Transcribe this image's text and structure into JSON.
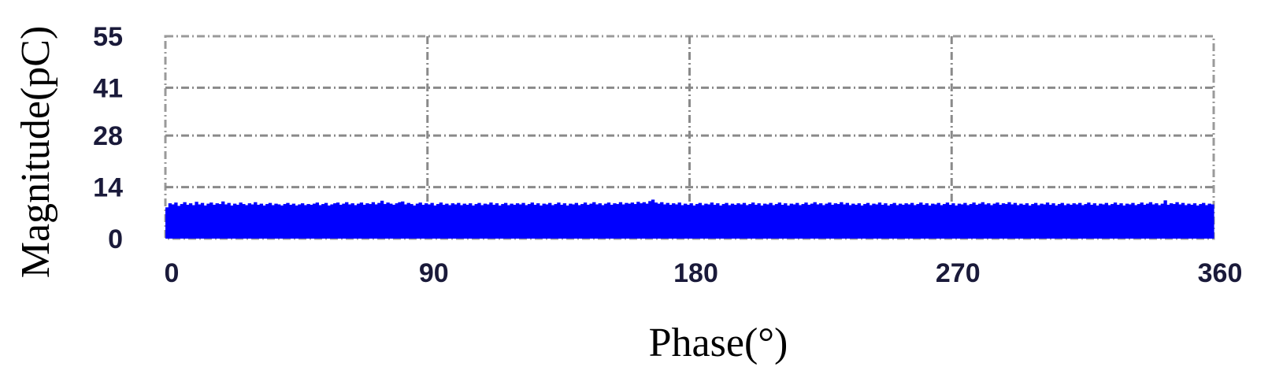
{
  "chart_data": {
    "type": "bar",
    "xlabel": "Phase(°)",
    "ylabel": "Magnitude(pC)",
    "xlim": [
      0,
      360
    ],
    "ylim": [
      0,
      55
    ],
    "xticks": [
      0,
      90,
      180,
      270,
      360
    ],
    "yticks": [
      0,
      14,
      28,
      41,
      55
    ],
    "xtick_labels": [
      "0",
      "90",
      "180",
      "270",
      "360"
    ],
    "ytick_labels": [
      "0",
      "14",
      "28",
      "41",
      "55"
    ],
    "grid": true,
    "series": [
      {
        "color": "#0000ff",
        "base_level": 7.5,
        "peak_level": 10.5,
        "description_phase_range": [
          0,
          360
        ],
        "bin_width": 1,
        "values": [
          8.5,
          9.6,
          9.3,
          9.8,
          8.9,
          9.4,
          9.9,
          9.2,
          9.6,
          9.1,
          10.0,
          9.3,
          9.7,
          9.0,
          9.5,
          9.8,
          9.2,
          9.6,
          9.4,
          10.1,
          9.3,
          9.7,
          9.0,
          9.5,
          9.2,
          9.8,
          9.4,
          9.1,
          9.6,
          9.3,
          9.9,
          9.2,
          9.5,
          9.0,
          9.4,
          9.7,
          9.1,
          9.5,
          9.3,
          9.0,
          9.4,
          9.7,
          9.2,
          9.5,
          9.0,
          9.3,
          9.6,
          9.1,
          9.4,
          9.2,
          9.5,
          9.8,
          9.1,
          9.4,
          9.7,
          9.0,
          9.3,
          9.6,
          9.8,
          9.2,
          9.5,
          9.9,
          9.3,
          9.6,
          9.1,
          9.5,
          9.8,
          9.2,
          9.6,
          9.4,
          9.9,
          9.3,
          9.7,
          10.3,
          9.4,
          9.8,
          9.5,
          9.2,
          9.6,
          9.9,
          10.1,
          9.3,
          9.7,
          9.4,
          9.0,
          9.5,
          9.8,
          9.2,
          9.6,
          9.3,
          9.7,
          9.0,
          9.4,
          9.8,
          9.2,
          9.5,
          9.1,
          9.6,
          9.3,
          9.7,
          9.1,
          9.5,
          9.2,
          9.6,
          9.0,
          9.4,
          9.7,
          9.1,
          9.5,
          9.3,
          9.8,
          9.2,
          9.6,
          9.0,
          9.4,
          9.7,
          9.1,
          9.5,
          9.2,
          9.6,
          9.3,
          9.7,
          9.1,
          9.4,
          9.8,
          9.2,
          9.6,
          9.0,
          9.5,
          9.3,
          9.7,
          9.1,
          9.4,
          9.8,
          9.2,
          9.6,
          9.0,
          9.5,
          9.3,
          9.7,
          9.1,
          9.4,
          9.8,
          9.2,
          9.5,
          9.9,
          9.3,
          9.6,
          9.1,
          9.5,
          9.8,
          9.2,
          9.6,
          9.4,
          9.9,
          9.3,
          9.7,
          9.5,
          9.8,
          9.4,
          10.0,
          9.6,
          9.9,
          9.5,
          10.2,
          10.6,
          9.8,
          9.5,
          9.9,
          9.3,
          9.7,
          9.2,
          9.6,
          9.3,
          9.8,
          9.1,
          9.5,
          9.2,
          9.6,
          9.0,
          9.4,
          9.7,
          9.1,
          9.5,
          9.3,
          9.8,
          9.2,
          9.6,
          9.0,
          9.4,
          9.7,
          9.1,
          9.5,
          9.2,
          9.6,
          9.3,
          9.7,
          9.1,
          9.4,
          9.8,
          9.2,
          9.6,
          9.0,
          9.5,
          9.3,
          9.7,
          9.1,
          9.4,
          9.8,
          9.2,
          9.6,
          9.0,
          9.5,
          9.3,
          9.7,
          9.1,
          9.4,
          9.8,
          9.2,
          9.5,
          9.9,
          9.3,
          9.6,
          9.1,
          9.5,
          9.8,
          9.2,
          9.6,
          9.4,
          9.9,
          9.3,
          9.7,
          9.1,
          9.5,
          9.2,
          9.6,
          9.0,
          9.4,
          9.7,
          9.1,
          9.5,
          9.3,
          9.8,
          9.2,
          9.6,
          9.0,
          9.4,
          9.7,
          9.1,
          9.5,
          9.2,
          9.6,
          9.3,
          9.7,
          9.1,
          9.4,
          9.8,
          9.2,
          9.6,
          9.0,
          9.5,
          9.3,
          9.7,
          9.1,
          9.4,
          9.8,
          9.2,
          9.6,
          9.0,
          9.5,
          9.3,
          9.7,
          9.1,
          9.4,
          9.8,
          9.2,
          9.5,
          9.9,
          9.3,
          9.6,
          9.1,
          9.5,
          9.8,
          9.2,
          9.6,
          9.4,
          9.9,
          9.3,
          9.7,
          9.1,
          9.5,
          9.2,
          9.6,
          9.0,
          9.4,
          9.7,
          9.1,
          9.5,
          9.3,
          9.8,
          9.2,
          9.6,
          9.0,
          9.4,
          9.7,
          9.1,
          9.5,
          9.2,
          9.6,
          9.3,
          9.7,
          9.1,
          9.4,
          9.8,
          9.2,
          9.6,
          9.0,
          9.5,
          9.3,
          9.7,
          9.1,
          9.4,
          9.8,
          9.2,
          9.6,
          9.0,
          9.5,
          9.3,
          9.7,
          9.1,
          9.4,
          9.8,
          9.2,
          9.5,
          9.9,
          9.3,
          9.6,
          9.1,
          9.5,
          10.4,
          9.2,
          9.6,
          9.4,
          9.9,
          9.3,
          9.7,
          9.1,
          9.5,
          9.2,
          9.6,
          9.0,
          9.4,
          9.7,
          9.1,
          9.5,
          9.3
        ]
      }
    ]
  }
}
